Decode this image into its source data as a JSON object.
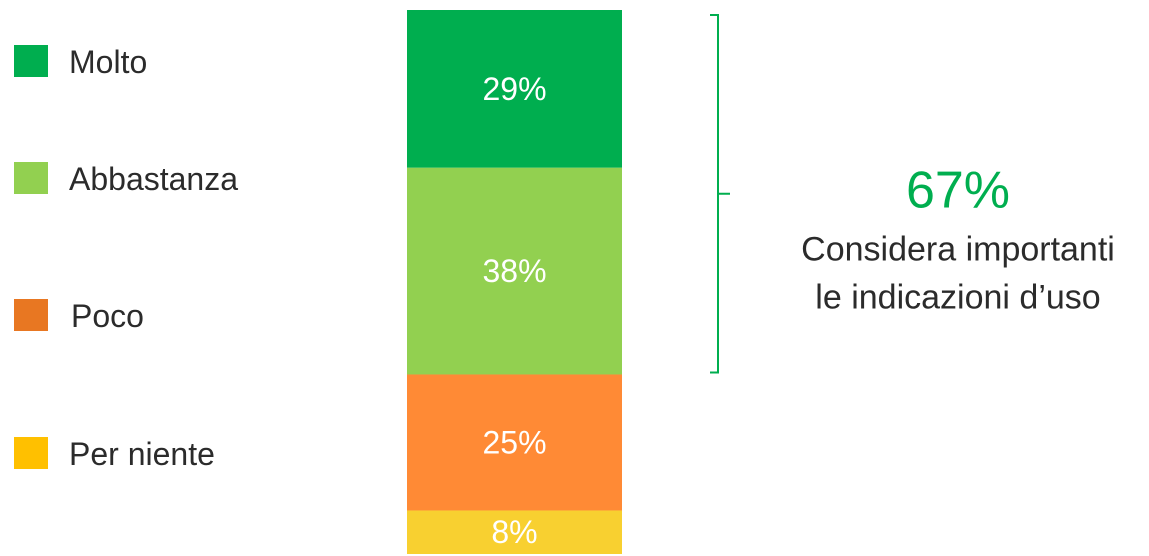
{
  "chart_data": {
    "type": "bar",
    "stacked": true,
    "orientation": "vertical",
    "categories": [
      ""
    ],
    "series": [
      {
        "name": "Molto",
        "values": [
          29
        ],
        "label": "29%",
        "color": "#00ae4f"
      },
      {
        "name": "Abbastanza",
        "values": [
          38
        ],
        "label": "38%",
        "color": "#92d050"
      },
      {
        "name": "Poco",
        "values": [
          25
        ],
        "label": "25%",
        "color": "#ff8a35"
      },
      {
        "name": "Per niente",
        "values": [
          8
        ],
        "label": "8%",
        "color": "#f8d030"
      }
    ],
    "legend_position": "left",
    "ylim": [
      0,
      100
    ],
    "legend": [
      {
        "label": "Molto",
        "color": "#00ae4f"
      },
      {
        "label": "Abbastanza",
        "color": "#92d050"
      },
      {
        "label": "Poco",
        "color": "#e87722"
      },
      {
        "label": "Per niente",
        "color": "#ffc000"
      }
    ],
    "annotation": {
      "value": "67%",
      "line1": "Considera importanti",
      "line2": "le indicazioni d’uso",
      "color": "#00ae4f",
      "spans_series": [
        "Molto",
        "Abbastanza"
      ]
    }
  }
}
